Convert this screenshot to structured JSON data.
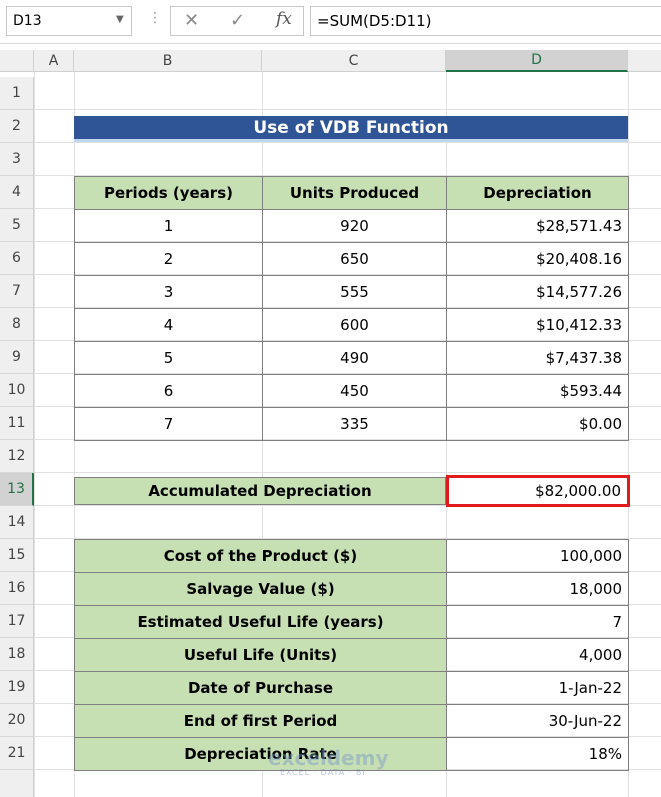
{
  "formula_bar": {
    "name_box": "D13",
    "formula": "=SUM(D5:D11)"
  },
  "column_headers": [
    "A",
    "B",
    "C",
    "D"
  ],
  "row_headers": [
    1,
    2,
    3,
    4,
    5,
    6,
    7,
    8,
    9,
    10,
    11,
    12,
    13,
    14,
    15,
    16,
    17,
    18,
    19,
    20,
    21
  ],
  "title": "Use of VDB Function",
  "depreciation_table": {
    "headers": [
      "Periods (years)",
      "Units Produced",
      "Depreciation"
    ],
    "rows": [
      [
        "1",
        "920",
        "$28,571.43"
      ],
      [
        "2",
        "650",
        "$20,408.16"
      ],
      [
        "3",
        "555",
        "$14,577.26"
      ],
      [
        "4",
        "600",
        "$10,412.33"
      ],
      [
        "5",
        "490",
        "$7,437.38"
      ],
      [
        "6",
        "450",
        "$593.44"
      ],
      [
        "7",
        "335",
        "$0.00"
      ]
    ]
  },
  "accumulated": {
    "label": "Accumulated Depreciation",
    "value": "$82,000.00"
  },
  "inputs": {
    "rows": [
      [
        "Cost of the Product ($)",
        "100,000"
      ],
      [
        "Salvage Value ($)",
        "18,000"
      ],
      [
        "Estimated Useful Life (years)",
        "7"
      ],
      [
        "Useful Life (Units)",
        "4,000"
      ],
      [
        "Date of Purchase",
        "1-Jan-22"
      ],
      [
        "End of first Period",
        "30-Jun-22"
      ],
      [
        "Depreciation Rate",
        "18%"
      ]
    ]
  },
  "watermark": {
    "brand": "exceldemy",
    "tagline": "EXCEL · DATA · BI"
  }
}
